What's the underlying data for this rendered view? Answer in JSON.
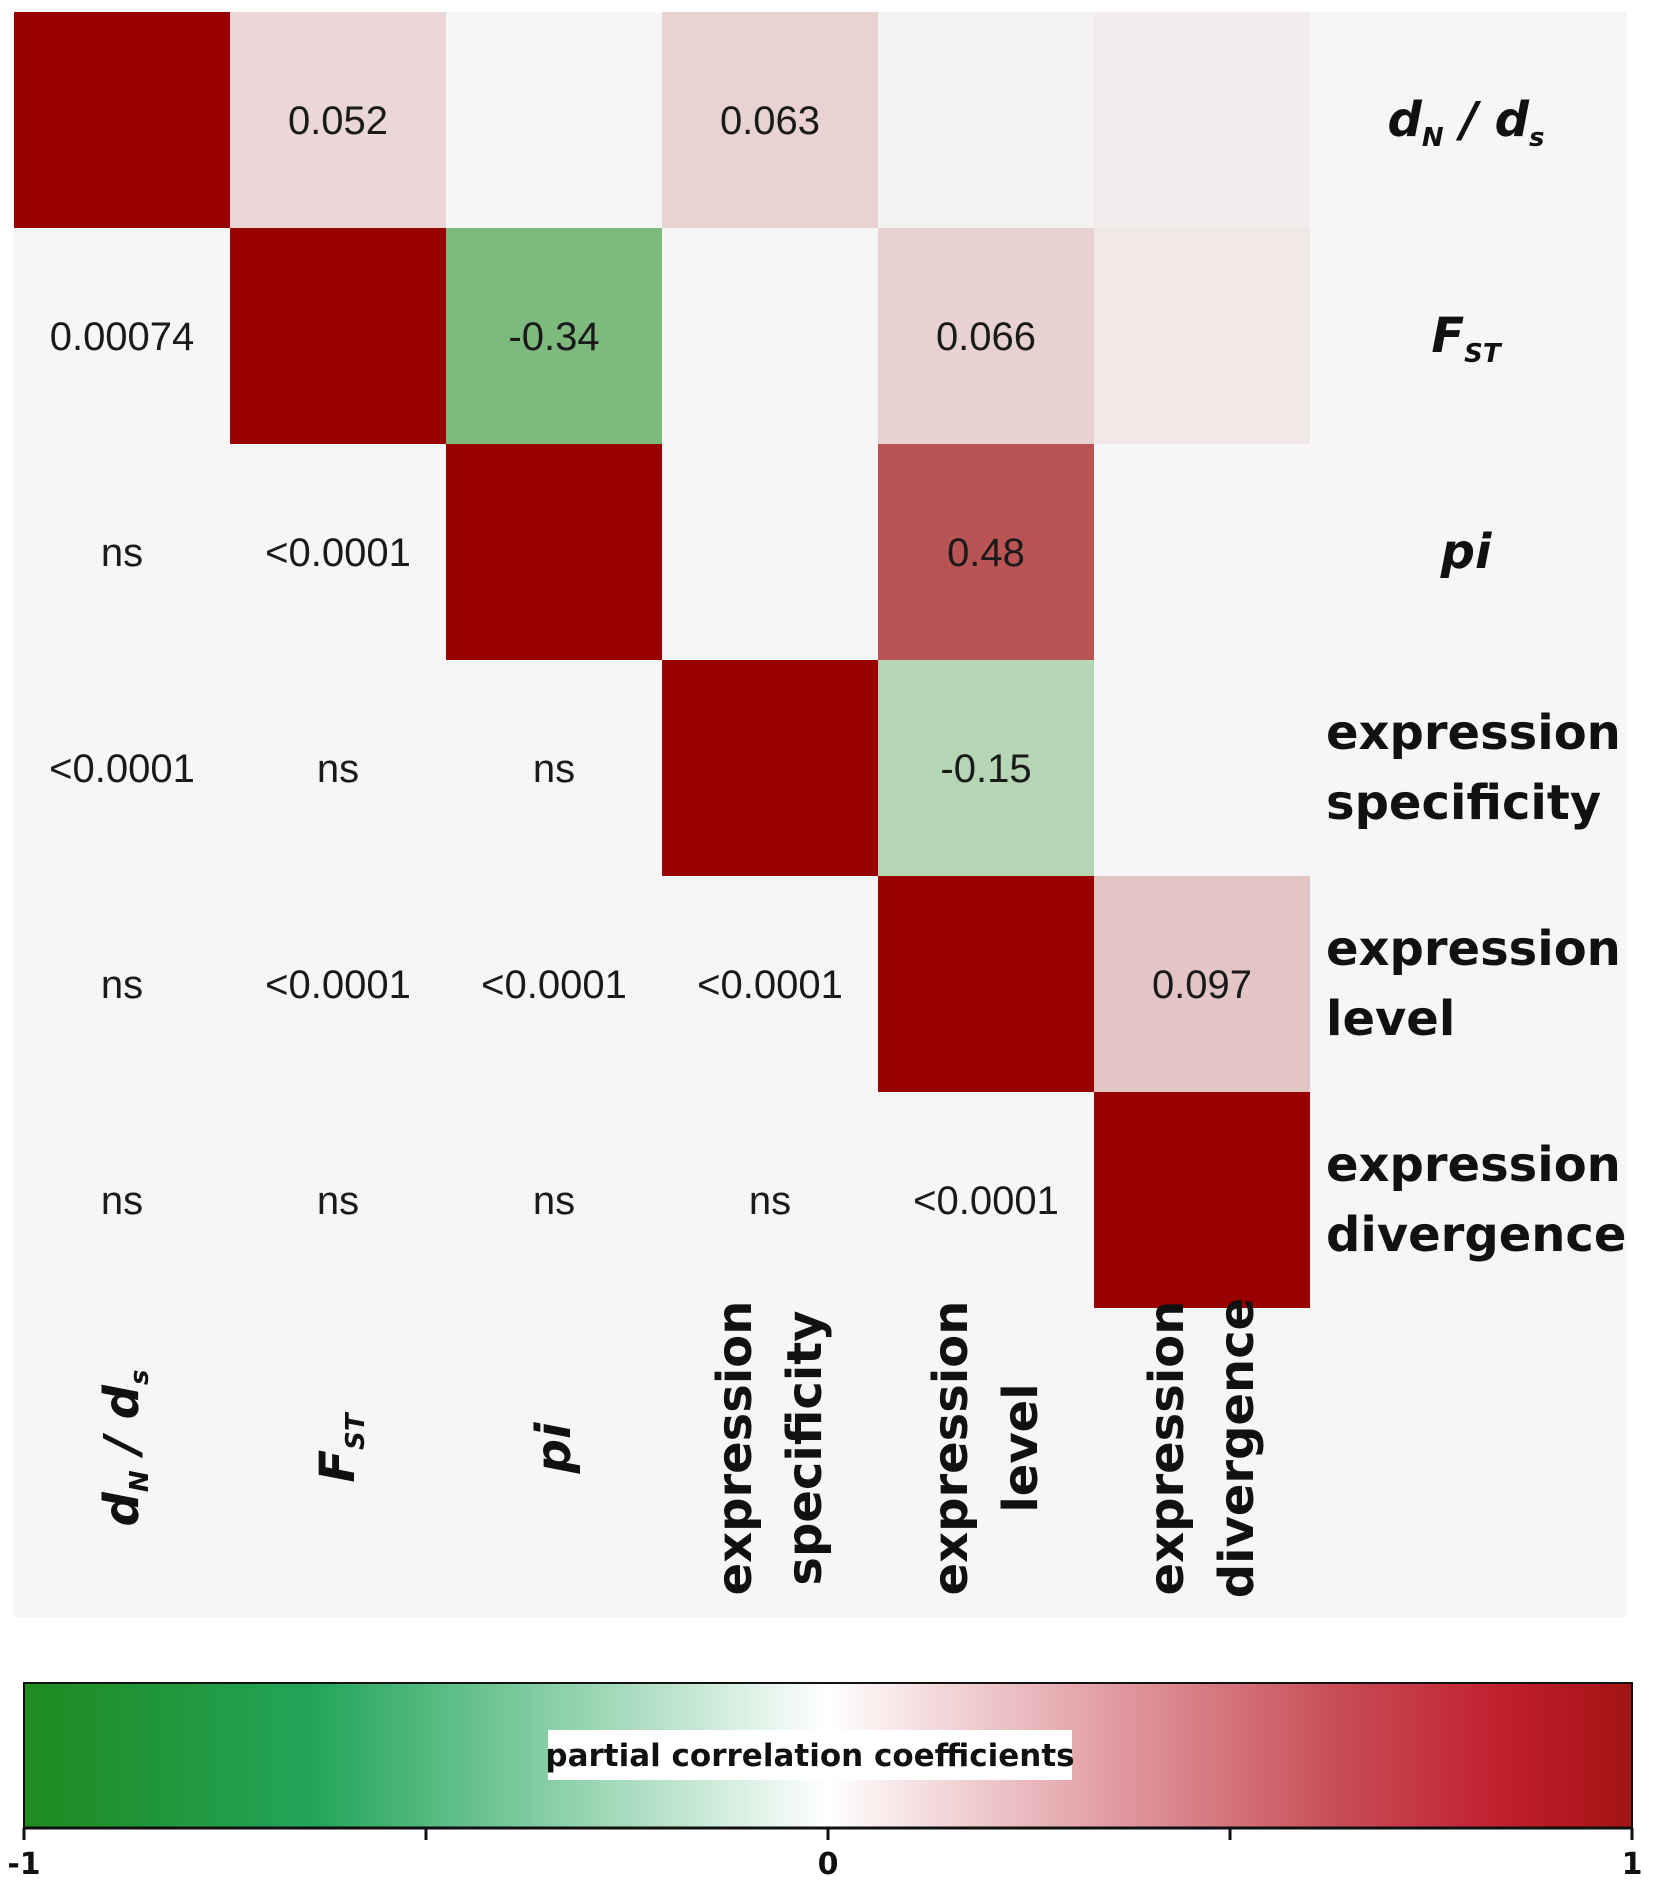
{
  "chart_data": {
    "type": "heatmap",
    "variables": [
      {
        "id": "dnds",
        "main": "d",
        "sub1": "N",
        "sep": " / ",
        "main2": "d",
        "sub2": "s",
        "italic": true
      },
      {
        "id": "fst",
        "main": "F",
        "sub1": "ST",
        "italic": true
      },
      {
        "id": "pi",
        "main": "pi",
        "italic": true
      },
      {
        "id": "expr_spec",
        "lines": [
          "expression",
          "specificity"
        ],
        "italic": false
      },
      {
        "id": "expr_level",
        "lines": [
          "expression",
          "level"
        ],
        "italic": false
      },
      {
        "id": "expr_div",
        "lines": [
          "expression",
          "divergence"
        ],
        "italic": false
      }
    ],
    "upper_triangle_coefficients": [
      {
        "row": 0,
        "col": 1,
        "value": 0.052,
        "label": "0.052"
      },
      {
        "row": 0,
        "col": 2,
        "value": 0.0,
        "label": ""
      },
      {
        "row": 0,
        "col": 3,
        "value": 0.063,
        "label": "0.063"
      },
      {
        "row": 0,
        "col": 4,
        "value": 0.005,
        "label": ""
      },
      {
        "row": 0,
        "col": 5,
        "value": 0.012,
        "label": ""
      },
      {
        "row": 1,
        "col": 2,
        "value": -0.34,
        "label": "-0.34"
      },
      {
        "row": 1,
        "col": 3,
        "value": 0.0,
        "label": ""
      },
      {
        "row": 1,
        "col": 4,
        "value": 0.066,
        "label": "0.066"
      },
      {
        "row": 1,
        "col": 5,
        "value": 0.018,
        "label": ""
      },
      {
        "row": 2,
        "col": 3,
        "value": 0.0,
        "label": ""
      },
      {
        "row": 2,
        "col": 4,
        "value": 0.48,
        "label": "0.48"
      },
      {
        "row": 2,
        "col": 5,
        "value": 0.0,
        "label": ""
      },
      {
        "row": 3,
        "col": 4,
        "value": -0.15,
        "label": "-0.15"
      },
      {
        "row": 3,
        "col": 5,
        "value": 0.0,
        "label": ""
      },
      {
        "row": 4,
        "col": 5,
        "value": 0.097,
        "label": "0.097"
      }
    ],
    "lower_triangle_pvalues": [
      {
        "row": 1,
        "col": 0,
        "label": "0.00074"
      },
      {
        "row": 2,
        "col": 0,
        "label": "ns"
      },
      {
        "row": 2,
        "col": 1,
        "label": "<0.0001"
      },
      {
        "row": 3,
        "col": 0,
        "label": "<0.0001"
      },
      {
        "row": 3,
        "col": 1,
        "label": "ns"
      },
      {
        "row": 3,
        "col": 2,
        "label": "ns"
      },
      {
        "row": 4,
        "col": 0,
        "label": "ns"
      },
      {
        "row": 4,
        "col": 1,
        "label": "<0.0001"
      },
      {
        "row": 4,
        "col": 2,
        "label": "<0.0001"
      },
      {
        "row": 4,
        "col": 3,
        "label": "<0.0001"
      },
      {
        "row": 5,
        "col": 0,
        "label": "ns"
      },
      {
        "row": 5,
        "col": 1,
        "label": "ns"
      },
      {
        "row": 5,
        "col": 2,
        "label": "ns"
      },
      {
        "row": 5,
        "col": 3,
        "label": "ns"
      },
      {
        "row": 5,
        "col": 4,
        "label": "<0.0001"
      }
    ],
    "diagonal_value": 1,
    "colorbar": {
      "title": "partial correlation coefficients",
      "range": [
        -1,
        1
      ],
      "ticks": [
        -1,
        -0.5,
        0,
        0.5,
        1
      ],
      "tick_labels": [
        "-1",
        "",
        "0",
        "",
        "1"
      ],
      "colors": {
        "low": "#1f8a1f",
        "mid": "#ffffff",
        "high": "#a31414"
      }
    },
    "colors": {
      "diagonal": "#990000",
      "background": "#f6f6f6",
      "positive_strong": "#990000",
      "negative_strong": "#1f8a1f"
    }
  }
}
